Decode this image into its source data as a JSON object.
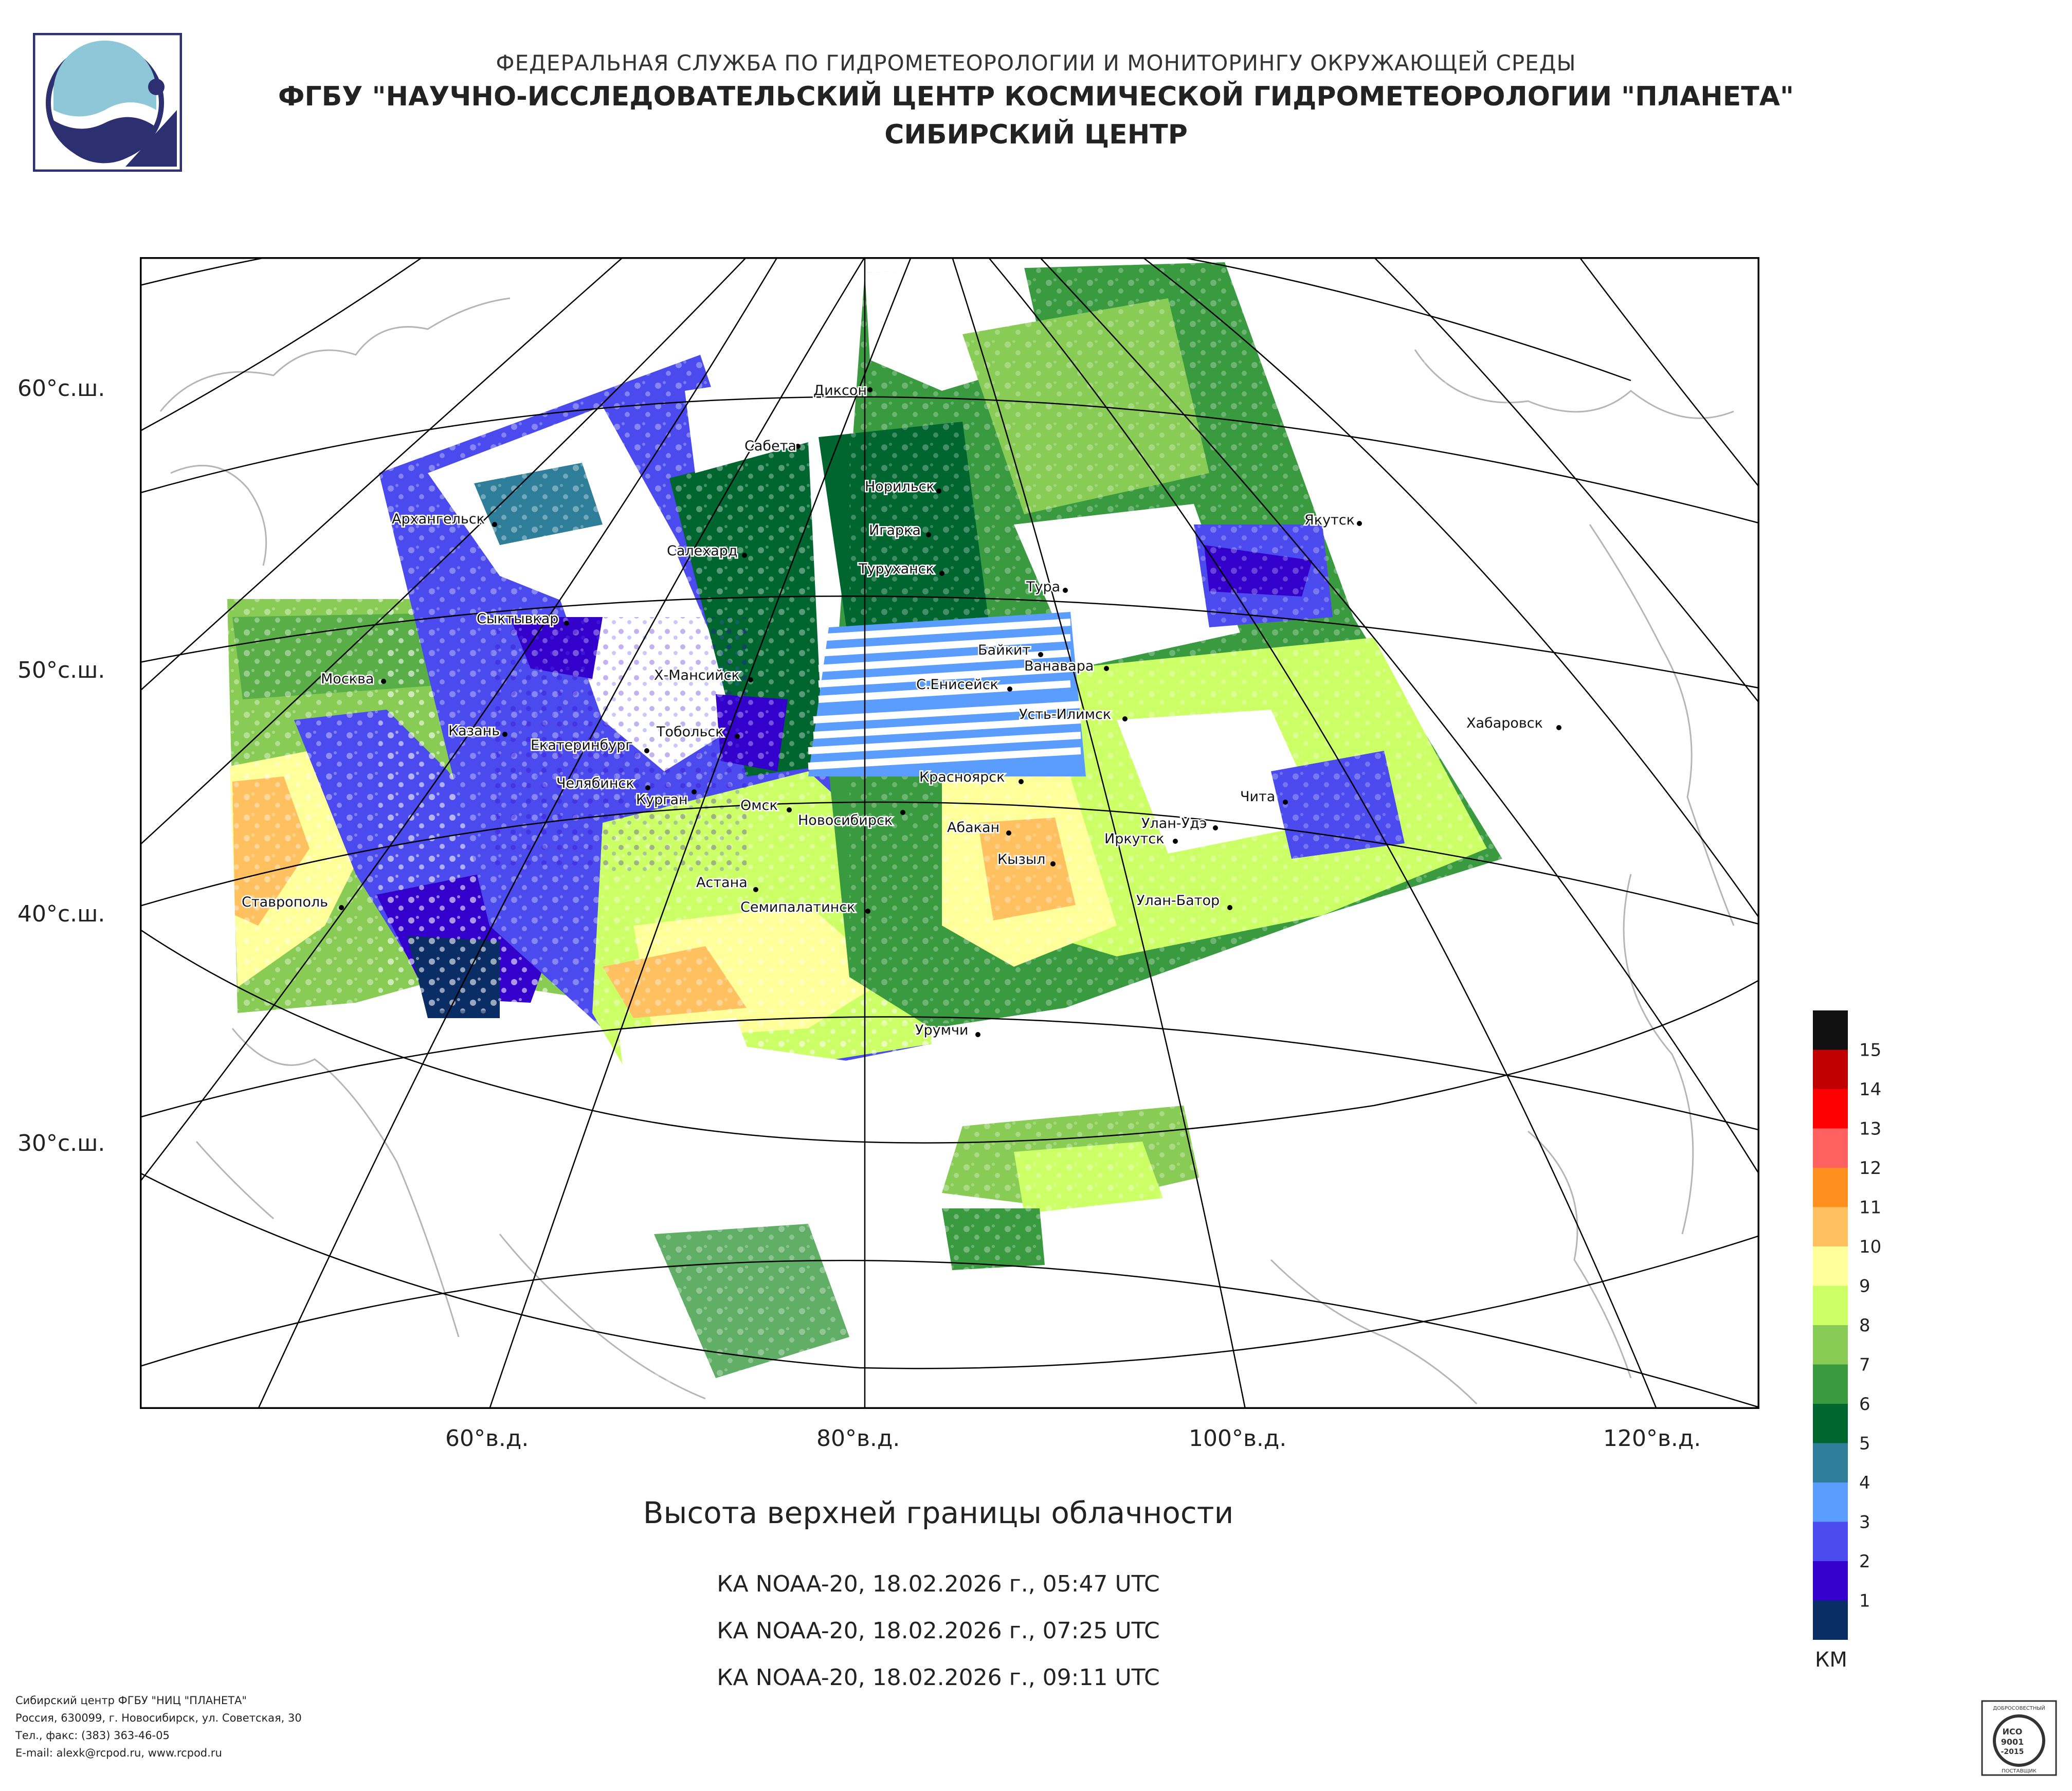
{
  "header": {
    "agency": "ФЕДЕРАЛЬНАЯ СЛУЖБА ПО ГИДРОМЕТЕОРОЛОГИИ И МОНИТОРИНГУ ОКРУЖАЮЩЕЙ СРЕДЫ",
    "organization": "ФГБУ \"НАУЧНО-ИССЛЕДОВАТЕЛЬСКИЙ ЦЕНТР КОСМИЧЕСКОЙ ГИДРОМЕТЕОРОЛОГИИ \"ПЛАНЕТА\"",
    "center": "СИБИРСКИЙ ЦЕНТР"
  },
  "map": {
    "lat_labels": [
      "60°с.ш.",
      "50°с.ш.",
      "40°с.ш.",
      "30°с.ш."
    ],
    "lon_labels": [
      "60°в.д.",
      "80°в.д.",
      "100°в.д.",
      "120°в.д."
    ],
    "cities": [
      "Диксон",
      "Сабета",
      "Норильск",
      "Игарка",
      "Туруханск",
      "Тура",
      "Якутск",
      "Архангельск",
      "Салехард",
      "Сыктывкар",
      "Байкит",
      "Ванавара",
      "Москва",
      "Х-Мансийск",
      "С.Енисейск",
      "Усть-Илимск",
      "Хабаровск",
      "Казань",
      "Екатеринбург",
      "Тобольск",
      "Челябинск",
      "Курган",
      "Омск",
      "Новосибирск",
      "Красноярск",
      "Чита",
      "Абакан",
      "Улан-Удэ",
      "Иркутск",
      "Кызыл",
      "Ставрополь",
      "Астана",
      "Семипалатинск",
      "Улан-Батор",
      "Урумчи"
    ]
  },
  "legend": {
    "unit": "КМ",
    "levels": [
      {
        "label": "15",
        "color": "#111111"
      },
      {
        "label": "14",
        "color": "#c00000"
      },
      {
        "label": "13",
        "color": "#ff0000"
      },
      {
        "label": "12",
        "color": "#ff6060"
      },
      {
        "label": "11",
        "color": "#ff9020"
      },
      {
        "label": "10",
        "color": "#ffc060"
      },
      {
        "label": "9",
        "color": "#ffff99"
      },
      {
        "label": "8",
        "color": "#ccff66"
      },
      {
        "label": "7",
        "color": "#88cc55"
      },
      {
        "label": "6",
        "color": "#3a9a40"
      },
      {
        "label": "5",
        "color": "#006630"
      },
      {
        "label": "4",
        "color": "#2e7e9a"
      },
      {
        "label": "3",
        "color": "#5b9cff"
      },
      {
        "label": "2",
        "color": "#4a4aee"
      },
      {
        "label": "1",
        "color": "#3300cc"
      },
      {
        "label": "",
        "color": "#0a2d66"
      }
    ]
  },
  "title": "Высота верхней границы облачности",
  "passes": [
    "КА NOAA-20, 18.02.2026 г., 05:47 UTC",
    "КА NOAA-20, 18.02.2026 г., 07:25 UTC",
    "КА NOAA-20, 18.02.2026 г., 09:11 UTC"
  ],
  "footer": {
    "line1": "Сибирский центр ФГБУ \"НИЦ \"ПЛАНЕТА\"",
    "line2": "Россия, 630099, г. Новосибирск, ул. Советская, 30",
    "line3": "Тел., факс: (383) 363-46-05",
    "line4": "E-mail: alexk@rcpod.ru, www.rcpod.ru"
  },
  "iso_badge": {
    "top_text": "ДОБРОСОВЕСТНЫЙ",
    "line1": "ИСО",
    "line2": "9001",
    "line3": "-2015",
    "bottom_text": "ПОСТАВЩИК"
  }
}
